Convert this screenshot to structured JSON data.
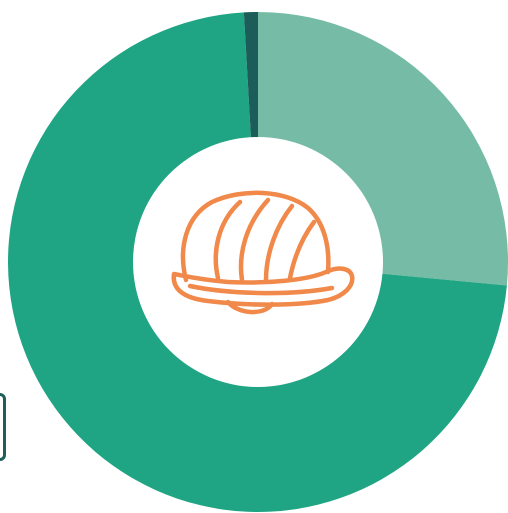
{
  "colors": {
    "background": "#ffffff",
    "center_disc": "#ffffff",
    "icon_stroke": "#f0894a",
    "tab_border": "#1e5f5a"
  },
  "center_icon": "hard-hat-icon",
  "chart_data": {
    "type": "pie",
    "style": "donut",
    "title": "",
    "legend": "none",
    "data_labels": "none",
    "start_angle_deg": -90,
    "direction": "clockwise",
    "slices": [
      {
        "value": 26.5,
        "color": "#76bba5"
      },
      {
        "value": 72.6,
        "color": "#1fa583"
      },
      {
        "value": 0.9,
        "color": "#1c5c59"
      }
    ]
  }
}
